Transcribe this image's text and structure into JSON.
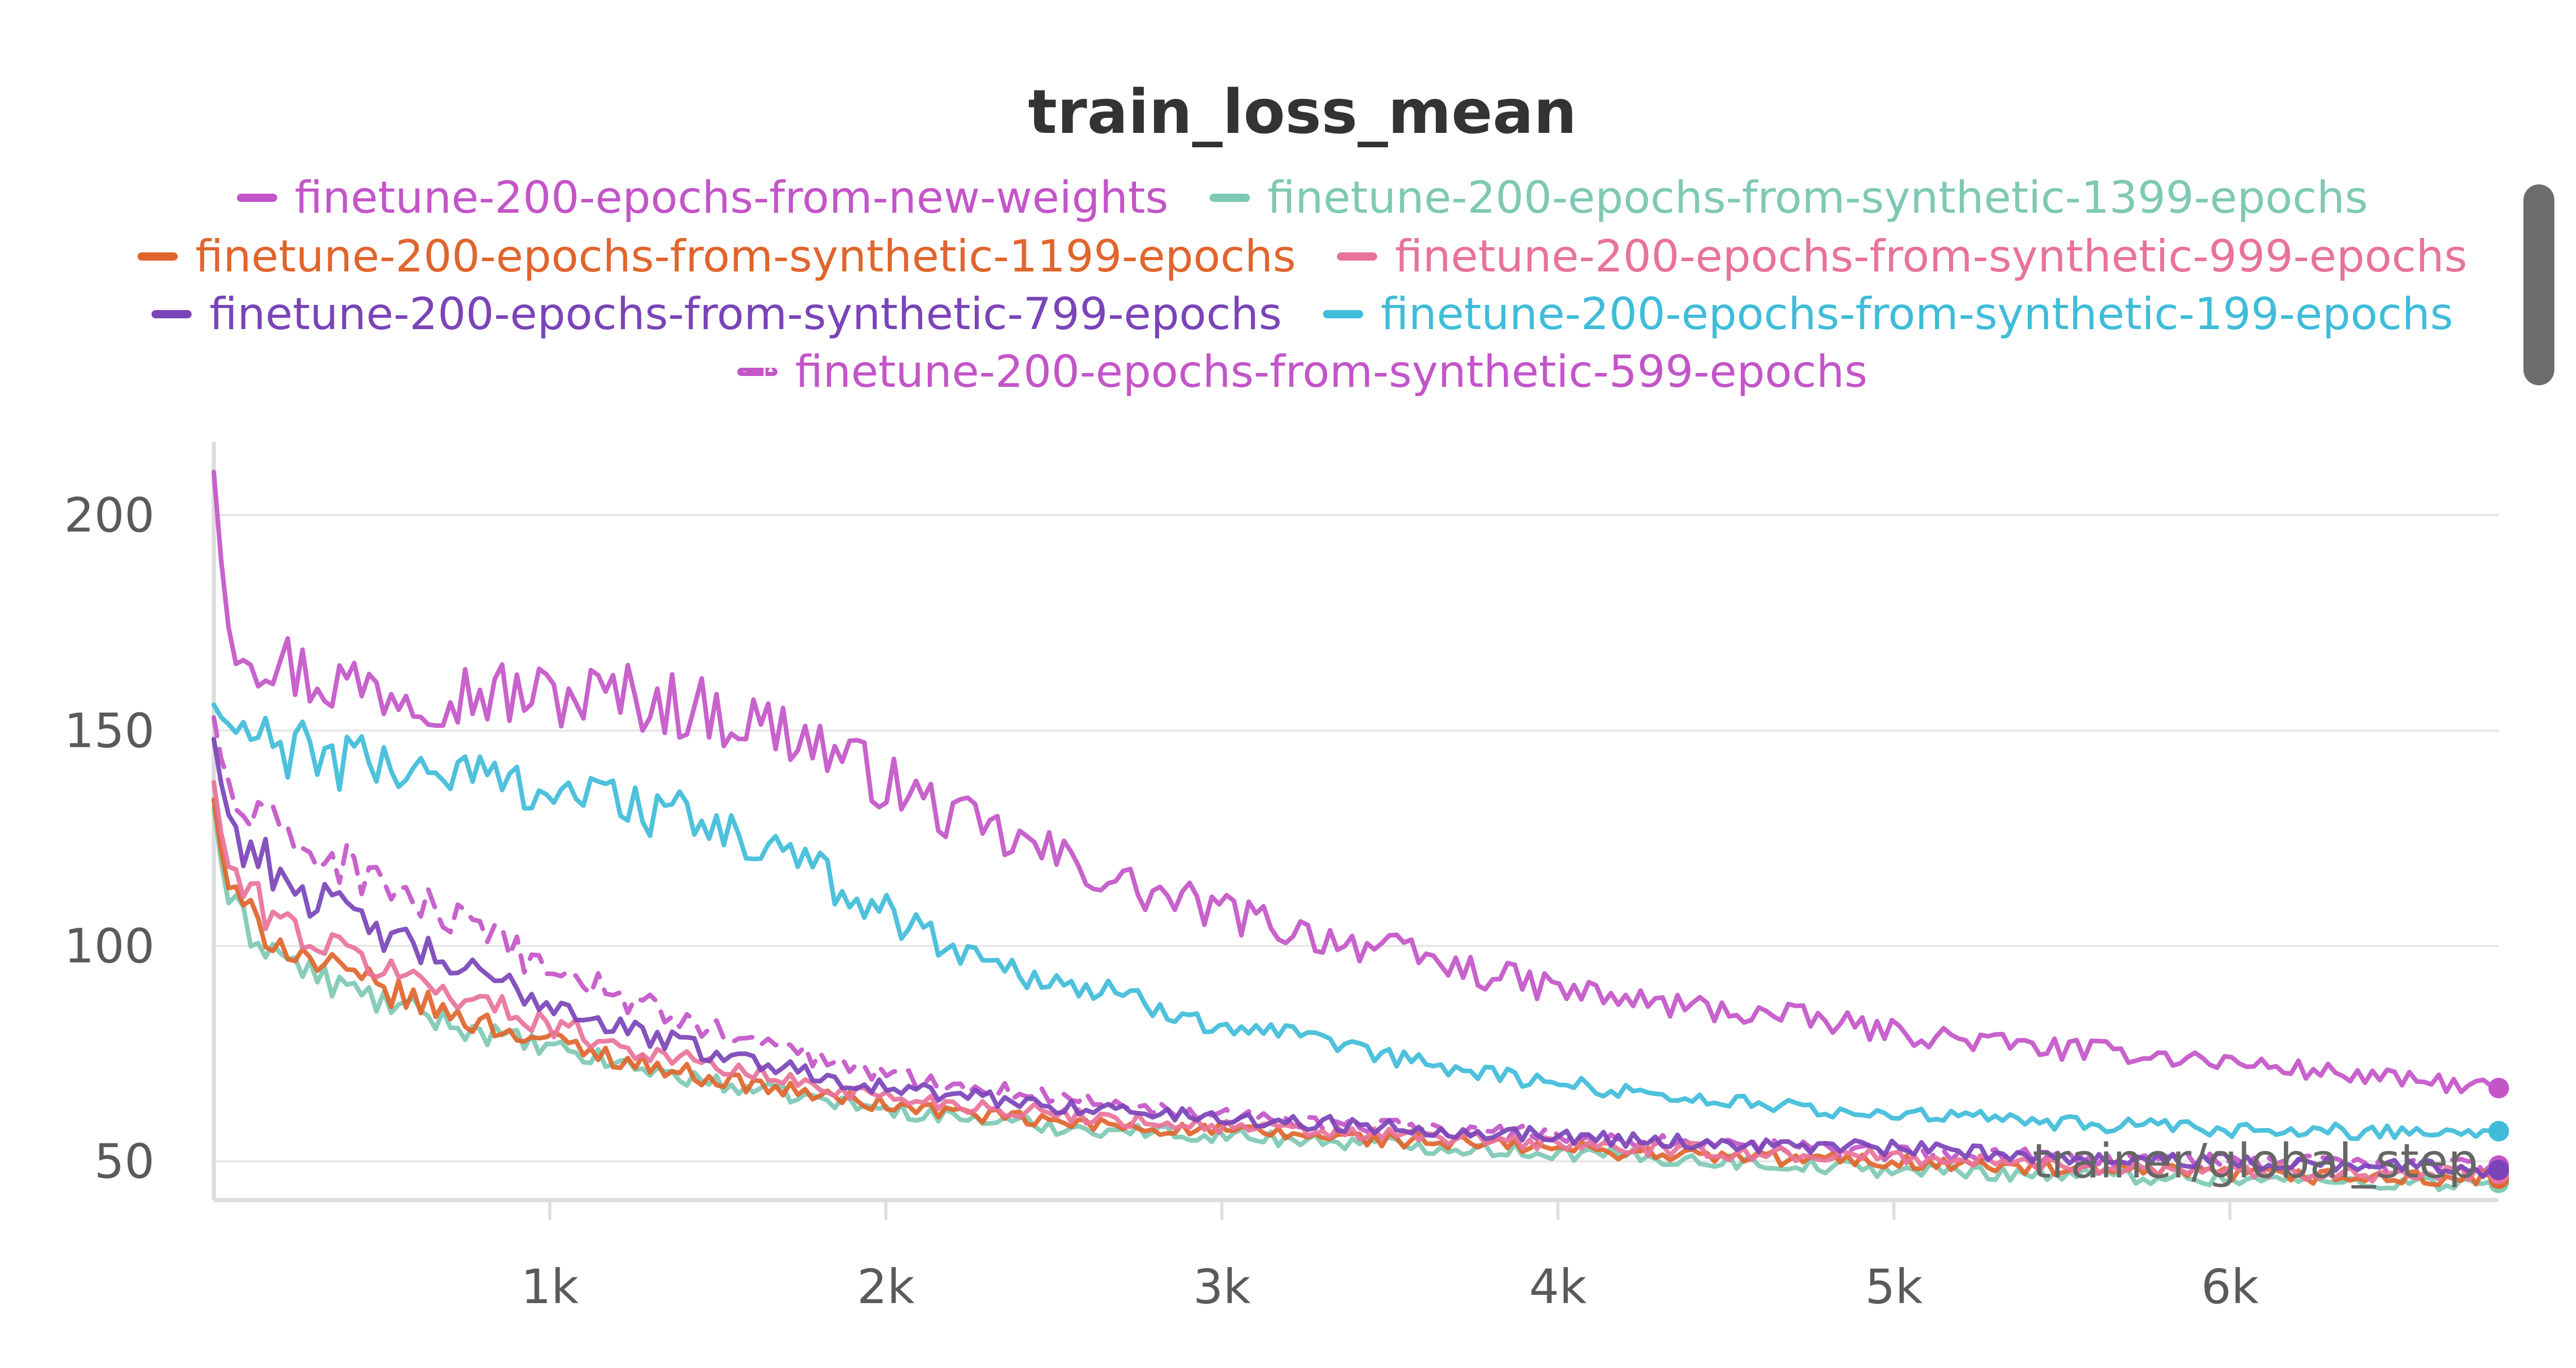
{
  "chart_data": {
    "type": "line",
    "title": "train_loss_mean",
    "xlabel": "trainer/global_step",
    "ylabel": "",
    "xlim": [
      0,
      6800
    ],
    "ylim": [
      41,
      217
    ],
    "xticks": [
      1000,
      2000,
      3000,
      4000,
      5000,
      6000
    ],
    "xtick_labels": [
      "1k",
      "2k",
      "3k",
      "4k",
      "5k",
      "6k"
    ],
    "yticks": [
      50,
      100,
      150,
      200
    ],
    "ytick_labels": [
      "50",
      "100",
      "150",
      "200"
    ],
    "grid": true,
    "legend_position": "top",
    "series": [
      {
        "name": "finetune-200-epochs-from-new-weights",
        "color": "#c355c8",
        "dashed": false,
        "x": [
          0,
          30,
          60,
          100,
          200,
          300,
          500,
          750,
          1000,
          1250,
          1500,
          1750,
          2000,
          2250,
          2500,
          2750,
          3000,
          3250,
          3500,
          3750,
          4000,
          4250,
          4500,
          4750,
          5000,
          5250,
          5500,
          5750,
          6000,
          6250,
          6500,
          6800
        ],
        "y": [
          210,
          182,
          174,
          170,
          166,
          162,
          160,
          159,
          158,
          158,
          154,
          149,
          138,
          128,
          121,
          113,
          108,
          103,
          99,
          94,
          90,
          87,
          85,
          83,
          80,
          78,
          76,
          75,
          73,
          71,
          69,
          67
        ]
      },
      {
        "name": "finetune-200-epochs-from-synthetic-1399-epochs",
        "color": "#7ec9b4",
        "dashed": false,
        "x": [
          0,
          30,
          60,
          100,
          200,
          300,
          500,
          750,
          1000,
          1250,
          1500,
          1750,
          2000,
          2500,
          3000,
          3500,
          4000,
          4500,
          5000,
          5500,
          6000,
          6500,
          6800
        ],
        "y": [
          132,
          115,
          108,
          104,
          98,
          93,
          87,
          81,
          76,
          72,
          68,
          65,
          62,
          58,
          56,
          54,
          52,
          50,
          48,
          47,
          46,
          45,
          45
        ]
      },
      {
        "name": "finetune-200-epochs-from-synthetic-1199-epochs",
        "color": "#e0652d",
        "dashed": false,
        "x": [
          0,
          30,
          60,
          100,
          200,
          300,
          500,
          750,
          1000,
          1250,
          1500,
          1750,
          2000,
          2500,
          3000,
          3500,
          4000,
          4500,
          5000,
          5500,
          6000,
          6500,
          6800
        ],
        "y": [
          134,
          118,
          111,
          107,
          101,
          96,
          90,
          83,
          78,
          73,
          69,
          66,
          63,
          59,
          57,
          55,
          53,
          51,
          50,
          48,
          47,
          46,
          46
        ]
      },
      {
        "name": "finetune-200-epochs-from-synthetic-999-epochs",
        "color": "#e8739a",
        "dashed": false,
        "x": [
          0,
          30,
          60,
          100,
          200,
          300,
          500,
          750,
          1000,
          1250,
          1500,
          1750,
          2000,
          2500,
          3000,
          3500,
          4000,
          4500,
          5000,
          5500,
          6000,
          6500,
          6800
        ],
        "y": [
          138,
          122,
          116,
          112,
          106,
          101,
          95,
          88,
          82,
          76,
          72,
          68,
          65,
          61,
          58,
          56,
          54,
          52,
          51,
          49,
          48,
          47,
          47
        ]
      },
      {
        "name": "finetune-200-epochs-from-synthetic-799-epochs",
        "color": "#7a44b8",
        "dashed": false,
        "x": [
          0,
          30,
          60,
          100,
          200,
          300,
          500,
          750,
          1000,
          1250,
          1500,
          1750,
          2000,
          2500,
          3000,
          3500,
          4000,
          4500,
          5000,
          5500,
          6000,
          6500,
          6800
        ],
        "y": [
          148,
          134,
          127,
          123,
          117,
          111,
          103,
          94,
          87,
          80,
          75,
          71,
          67,
          63,
          60,
          58,
          56,
          54,
          53,
          51,
          50,
          49,
          48
        ]
      },
      {
        "name": "finetune-200-epochs-from-synthetic-199-epochs",
        "color": "#3fbcd9",
        "dashed": false,
        "x": [
          0,
          30,
          60,
          100,
          200,
          300,
          500,
          750,
          1000,
          1250,
          1500,
          1750,
          2000,
          2250,
          2500,
          2750,
          3000,
          3250,
          3500,
          3750,
          4000,
          4250,
          4500,
          4750,
          5000,
          5250,
          5500,
          5750,
          6000,
          6250,
          6500,
          6800
        ],
        "y": [
          156,
          152,
          150,
          148,
          146,
          144,
          142,
          140,
          137,
          133,
          127,
          119,
          108,
          98,
          92,
          87,
          82,
          78,
          74,
          71,
          68,
          66,
          64,
          62,
          61,
          60,
          59,
          58,
          57,
          57,
          57,
          57
        ]
      },
      {
        "name": "finetune-200-epochs-from-synthetic-599-epochs",
        "color": "#c355c8",
        "dashed": true,
        "x": [
          0,
          30,
          60,
          100,
          200,
          300,
          500,
          750,
          1000,
          1250,
          1500,
          1750,
          2000,
          2500,
          3000,
          3500,
          4000,
          4500,
          5000,
          5500,
          6000,
          6500,
          6800
        ],
        "y": [
          153,
          140,
          134,
          130,
          126,
          122,
          115,
          104,
          95,
          87,
          80,
          75,
          70,
          65,
          61,
          58,
          56,
          54,
          52,
          51,
          50,
          49,
          49
        ]
      }
    ]
  }
}
